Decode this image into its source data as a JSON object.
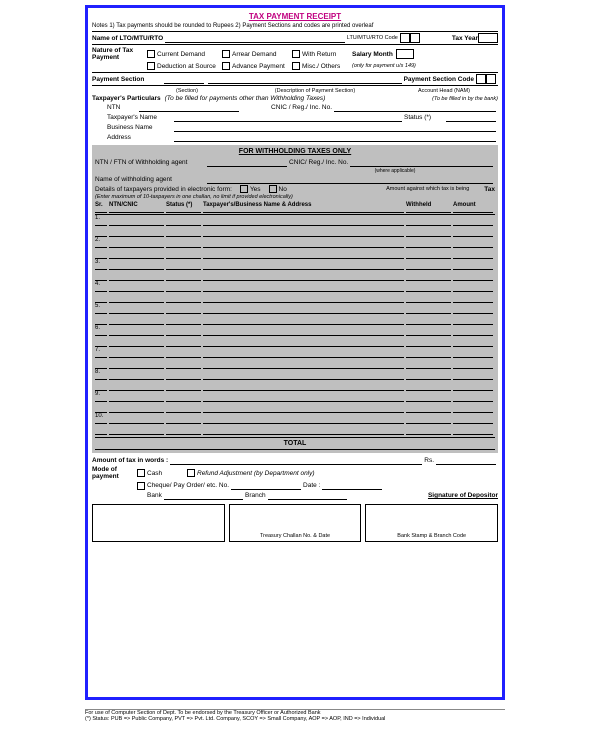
{
  "title": "TAX PAYMENT RECEIPT",
  "notes": "Notes    1)   Tax payments should be rounded to Rupees          2)  Payment Sections and codes are printed overleaf",
  "name_lto": "Name of LTO/MTU/RTO",
  "lto_code": "LTU/MTU/RTO Code",
  "tax_year": "Tax Year",
  "nature": {
    "label": "Nature of Tax Payment",
    "opt1": "Current Demand",
    "opt2": "Arrear Demand",
    "opt3": "With Return",
    "opt4": "Deduction at Source",
    "opt5": "Advance Payment",
    "opt6": "Misc./ Others",
    "salary": "Salary Month",
    "salary_note": "(only for payment u/s 149)"
  },
  "payment_section": {
    "label": "Payment Section",
    "sub1": "(Section)",
    "sub2": "(Description of Payment Section)",
    "code": "Payment Section Code",
    "acct": "Account Head (NAM)"
  },
  "particulars": {
    "label": "Taxpayer's Particulars",
    "note": "(To be filled for payments other than Withholding Taxes)",
    "bank_note": "(To be filled in by the bank)",
    "ntn": "NTN",
    "cnic": "CNIC / Reg./ Inc. No.",
    "name": "Taxpayer's Name",
    "status": "Status (*)",
    "business": "Business Name",
    "address": "Address"
  },
  "withholding": {
    "title": "FOR WITHHOLDING TAXES ONLY",
    "agent_ntn": "NTN / FTN of Withholding agent",
    "agent_cnic": "CNIC/ Reg./ Inc. No.",
    "agent_cnic_note": "(where applicable)",
    "agent_name": "Name of withholding agent",
    "details": "Details of taxpayers provided in electronic form:",
    "yes": "Yes",
    "no": "No",
    "details_note": "(Enter maximum of 10-taxpayers in one challan, no limit if provided electronically)",
    "amount_label": "Amount against which tax is being",
    "tax_label": "Tax",
    "cols": {
      "sr": "Sr.",
      "ntn": "NTN/CNIC",
      "status": "Status (*)",
      "name": "Taxpayer's/Business Name & Address",
      "withheld": "Withheld",
      "amount": "Amount"
    },
    "rows": [
      "1.",
      "2.",
      "3.",
      "4.",
      "5.",
      "6.",
      "7.",
      "8.",
      "9.",
      "10."
    ],
    "total": "TOTAL"
  },
  "amount_words": "Amount of tax in words :",
  "rs": "Rs.",
  "mode": {
    "label": "Mode of payment",
    "cash": "Cash",
    "refund": "Refund Adjustment (by Department only)",
    "cheque": "Cheque/ Pay Order/ etc. No.",
    "date": "Date :",
    "bank": "Bank",
    "branch": "Branch",
    "sig": "Signature of Depositor"
  },
  "sig_boxes": {
    "b1": "",
    "b2": "Treasury Challan No. & Date",
    "b3": "Bank Stamp & Branch Code"
  },
  "footer_use": "For use of Computer Section of Dept. To be endorsed by the Treasury Officer or Authorized Bank",
  "footer_status": "(*) Status:  PUB => Public Company,   PVT => Pvt. Ltd. Company,   SCOY => Small Company,   AOP => AOP,   IND => Individual"
}
